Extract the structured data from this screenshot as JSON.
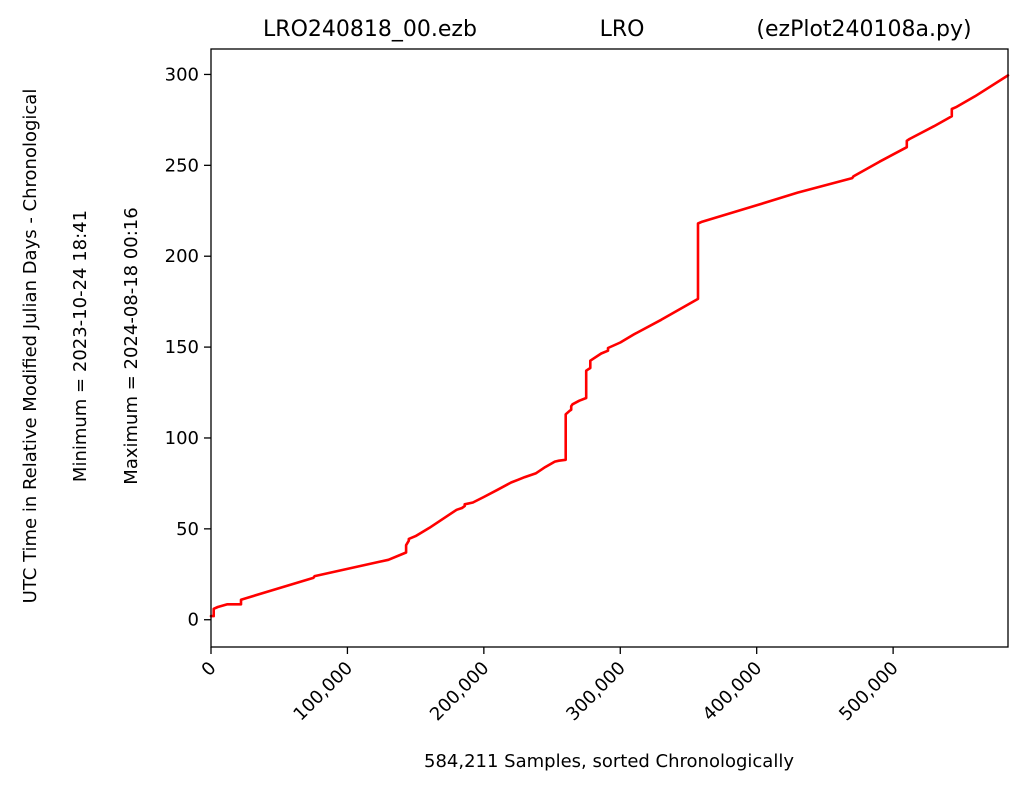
{
  "chart_data": {
    "type": "line",
    "title": {
      "left": "LRO240818_00.ezb",
      "center": "LRO",
      "right": "(ezPlot240108a.py)"
    },
    "xlabel": "584,211 Samples, sorted Chronologically",
    "ylabel_lines": [
      "UTC Time in Relative Modified Julian Days - Chronological",
      "Minimum = 2023-10-24   18:41",
      "Maximum = 2024-08-18   00:16"
    ],
    "xlim": [
      0,
      584211
    ],
    "ylim": [
      -15,
      314
    ],
    "x_ticks": [
      {
        "value": 0,
        "label": "0"
      },
      {
        "value": 100000,
        "label": "100,000"
      },
      {
        "value": 200000,
        "label": "200,000"
      },
      {
        "value": 300000,
        "label": "300,000"
      },
      {
        "value": 400000,
        "label": "400,000"
      },
      {
        "value": 500000,
        "label": "500,000"
      }
    ],
    "y_ticks": [
      {
        "value": 0,
        "label": "0"
      },
      {
        "value": 50,
        "label": "50"
      },
      {
        "value": 100,
        "label": "100"
      },
      {
        "value": 150,
        "label": "150"
      },
      {
        "value": 200,
        "label": "200"
      },
      {
        "value": 250,
        "label": "250"
      },
      {
        "value": 300,
        "label": "300"
      }
    ],
    "grid": false,
    "series": [
      {
        "color": "#ff0000",
        "x": [
          0,
          2000,
          2000,
          5000,
          12000,
          22000,
          22000,
          75000,
          76000,
          130000,
          143000,
          143000,
          145000,
          145000,
          150000,
          160000,
          168000,
          176000,
          180000,
          184000,
          186000,
          186000,
          192000,
          200000,
          210000,
          220000,
          225000,
          230000,
          238000,
          245000,
          252000,
          255000,
          260000,
          260000,
          263000,
          264000,
          264000,
          265000,
          270000,
          275000,
          275000,
          276000,
          278000,
          278000,
          286000,
          291000,
          291000,
          300000,
          310000,
          330000,
          357000,
          357000,
          360000,
          400000,
          430000,
          470000,
          471000,
          490000,
          510000,
          510000,
          512000,
          530000,
          543000,
          543000,
          546000,
          560000,
          584211
        ],
        "y": [
          2,
          2,
          6,
          7,
          8.5,
          8.5,
          11,
          23,
          24,
          33,
          37,
          41,
          43.5,
          44.5,
          46,
          50.5,
          54.5,
          58.5,
          60.5,
          61.5,
          62.5,
          63.5,
          64.5,
          67.5,
          71.5,
          75.5,
          77,
          78.5,
          80.5,
          84,
          87,
          87.5,
          88,
          113,
          115,
          115.5,
          117.5,
          118.5,
          120.5,
          122,
          137,
          137.5,
          138.5,
          142.5,
          146.5,
          148,
          149.5,
          152.5,
          157,
          165,
          176.5,
          218,
          219,
          228,
          235,
          243,
          244,
          252,
          260,
          263.5,
          264.5,
          271.5,
          277,
          281,
          282,
          288,
          299.5
        ]
      }
    ]
  }
}
